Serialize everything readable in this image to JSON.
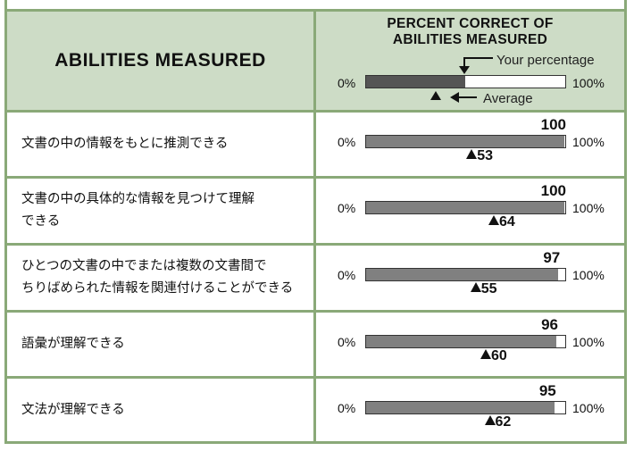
{
  "header": {
    "left_title": "ABILITIES MEASURED",
    "right_title_line1": "PERCENT CORRECT OF",
    "right_title_line2": "ABILITIES MEASURED",
    "legend_your": "Your percentage",
    "legend_avg": "Average",
    "legend_min": "0%",
    "legend_max": "100%",
    "legend_your_pct": 50,
    "legend_avg_pct": 36
  },
  "rows": [
    {
      "label_lines": [
        "文書の中の情報をもとに推測できる"
      ],
      "score": "100",
      "average": "53",
      "min": "0%",
      "max": "100%"
    },
    {
      "label_lines": [
        "文書の中の具体的な情報を見つけて理解",
        "できる"
      ],
      "score": "100",
      "average": "64",
      "min": "0%",
      "max": "100%"
    },
    {
      "label_lines": [
        "ひとつの文書の中でまたは複数の文書間で",
        "ちりばめられた情報を関連付けることができる"
      ],
      "score": "97",
      "average": "55",
      "min": "0%",
      "max": "100%"
    },
    {
      "label_lines": [
        "語彙が理解できる"
      ],
      "score": "96",
      "average": "60",
      "min": "0%",
      "max": "100%"
    },
    {
      "label_lines": [
        "文法が理解できる"
      ],
      "score": "95",
      "average": "62",
      "min": "0%",
      "max": "100%"
    }
  ],
  "colors": {
    "border": "#8aa978",
    "header_bg": "#cddcc6",
    "bar_fill": "#808080",
    "legend_fill": "#555555"
  }
}
